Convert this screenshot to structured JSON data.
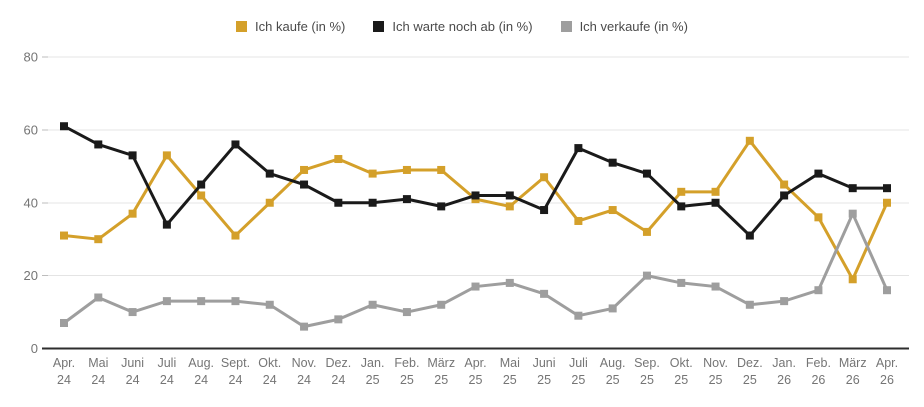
{
  "chart_data": {
    "type": "line",
    "categories": [
      "Apr. 24",
      "Mai 24",
      "Juni 24",
      "Juli 24",
      "Aug. 24",
      "Sept. 24",
      "Okt. 24",
      "Nov. 24",
      "Dez. 24",
      "Jan. 25",
      "Feb. 25",
      "März 25",
      "Apr. 25",
      "Mai 25",
      "Juni 25",
      "Juli 25",
      "Aug. 25",
      "Sep. 25",
      "Okt. 25",
      "Nov. 25",
      "Dez. 25",
      "Jan. 26",
      "Feb. 26",
      "März 26",
      "Apr. 26"
    ],
    "series": [
      {
        "name": "Ich kaufe (in %)",
        "color": "#d4a02a",
        "values": [
          31,
          30,
          37,
          53,
          42,
          31,
          40,
          49,
          52,
          48,
          49,
          49,
          41,
          39,
          47,
          35,
          38,
          32,
          43,
          43,
          57,
          45,
          36,
          19,
          40
        ]
      },
      {
        "name": "Ich warte noch ab (in %)",
        "color": "#1a1a1a",
        "values": [
          61,
          56,
          53,
          34,
          45,
          56,
          48,
          45,
          40,
          40,
          41,
          39,
          42,
          42,
          38,
          55,
          51,
          48,
          39,
          40,
          31,
          42,
          48,
          44,
          44
        ]
      },
      {
        "name": "Ich verkaufe (in %)",
        "color": "#9e9e9e",
        "values": [
          7,
          14,
          10,
          13,
          13,
          13,
          12,
          6,
          8,
          12,
          10,
          12,
          17,
          18,
          15,
          9,
          11,
          20,
          18,
          17,
          12,
          13,
          16,
          37,
          16
        ]
      }
    ],
    "ylim": [
      0,
      80
    ],
    "y_ticks": [
      0,
      20,
      40,
      60,
      80
    ],
    "grid": true,
    "legend_position": "top",
    "marker_shape": "square"
  },
  "colors": {
    "background": "#ffffff",
    "gridline": "#e4e4e4",
    "axis_line": "#2e2e2e",
    "tick_label": "#757575",
    "legend_text": "#4a4a4a"
  }
}
